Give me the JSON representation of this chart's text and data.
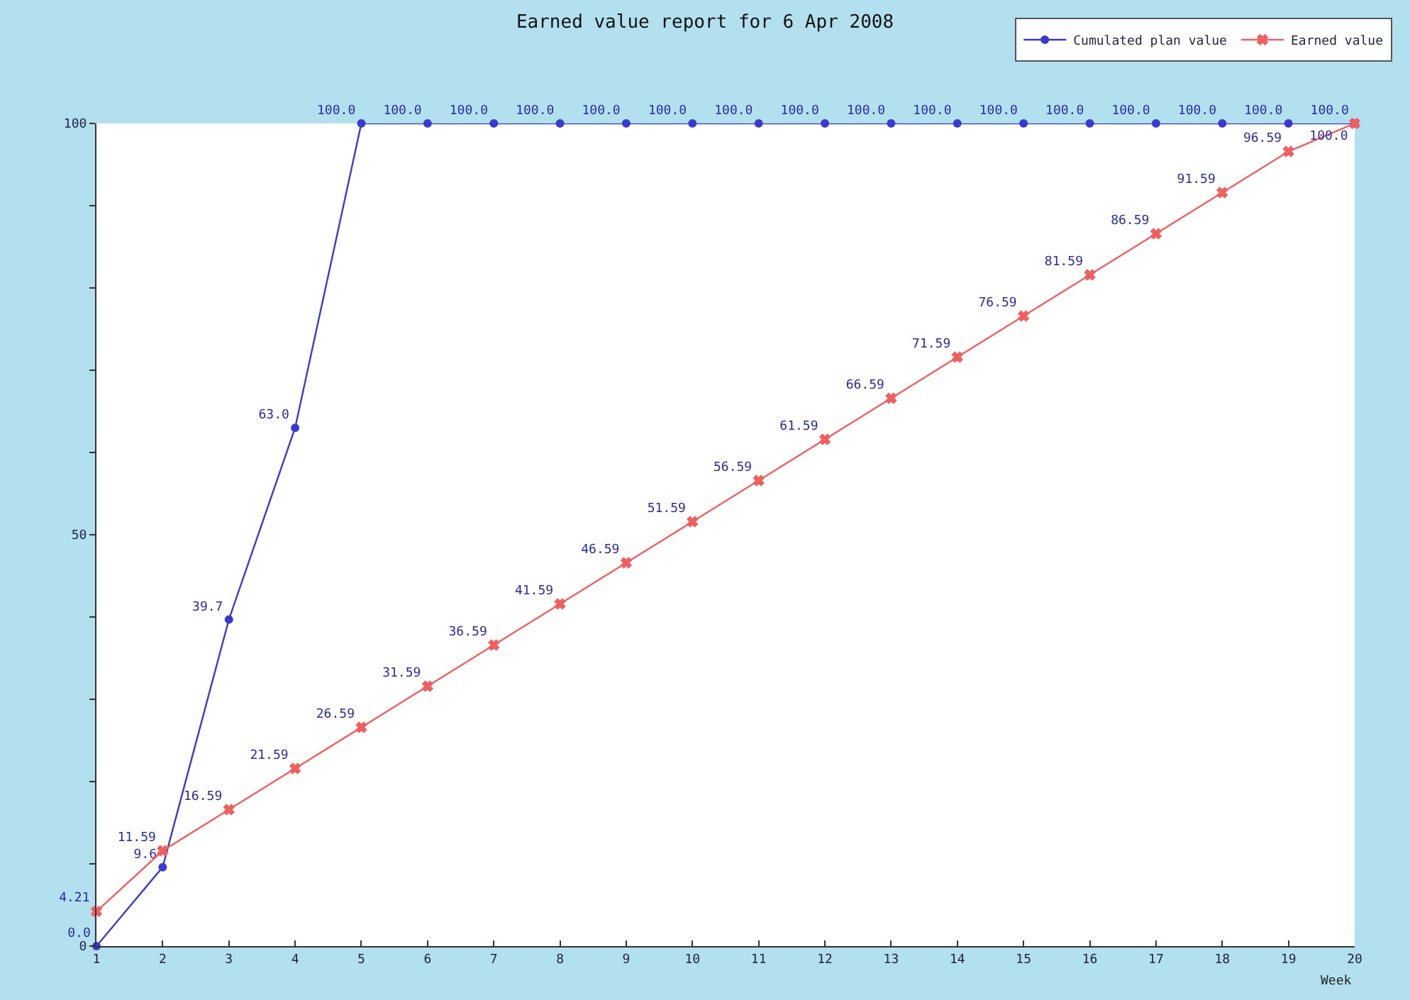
{
  "chart_data": {
    "type": "line",
    "title": "Earned value report for 6 Apr 2008",
    "xlabel": "Week",
    "x": [
      1,
      2,
      3,
      4,
      5,
      6,
      7,
      8,
      9,
      10,
      11,
      12,
      13,
      14,
      15,
      16,
      17,
      18,
      19,
      20
    ],
    "series": [
      {
        "name": "Cumulated plan value",
        "color": "#3a3ad0",
        "marker": "circle",
        "values": [
          0.0,
          9.6,
          39.7,
          63.0,
          100.0,
          100.0,
          100.0,
          100.0,
          100.0,
          100.0,
          100.0,
          100.0,
          100.0,
          100.0,
          100.0,
          100.0,
          100.0,
          100.0,
          100.0,
          100.0
        ],
        "value_labels": [
          "0.0",
          "9.6",
          "39.7",
          "63.0",
          "100.0",
          "100.0",
          "100.0",
          "100.0",
          "100.0",
          "100.0",
          "100.0",
          "100.0",
          "100.0",
          "100.0",
          "100.0",
          "100.0",
          "100.0",
          "100.0",
          "100.0",
          "100.0"
        ]
      },
      {
        "name": "Earned value",
        "color": "#f06060",
        "marker": "cross",
        "values": [
          4.21,
          11.59,
          16.59,
          21.59,
          26.59,
          31.59,
          36.59,
          41.59,
          46.59,
          51.59,
          56.59,
          61.59,
          66.59,
          71.59,
          76.59,
          81.59,
          86.59,
          91.59,
          96.59,
          100.0
        ],
        "value_labels": [
          "4.21",
          "11.59",
          "16.59",
          "21.59",
          "26.59",
          "31.59",
          "36.59",
          "41.59",
          "46.59",
          "51.59",
          "56.59",
          "61.59",
          "66.59",
          "71.59",
          "76.59",
          "81.59",
          "86.59",
          "91.59",
          "96.59",
          "100.0"
        ]
      }
    ],
    "xlim": [
      1,
      20
    ],
    "xticks": [
      1,
      2,
      3,
      4,
      5,
      6,
      7,
      8,
      9,
      10,
      11,
      12,
      13,
      14,
      15,
      16,
      17,
      18,
      19,
      20
    ],
    "ylim": [
      0,
      100
    ],
    "yticks": [
      0,
      {
        "value": 10,
        "label": null
      },
      {
        "value": 20,
        "label": null
      },
      {
        "value": 30,
        "label": null
      },
      {
        "value": 40,
        "label": null
      },
      50,
      {
        "value": 60,
        "label": null
      },
      {
        "value": 70,
        "label": null
      },
      {
        "value": 80,
        "label": null
      },
      {
        "value": 90,
        "label": null
      },
      100
    ],
    "grid": false,
    "legend": "top right"
  }
}
